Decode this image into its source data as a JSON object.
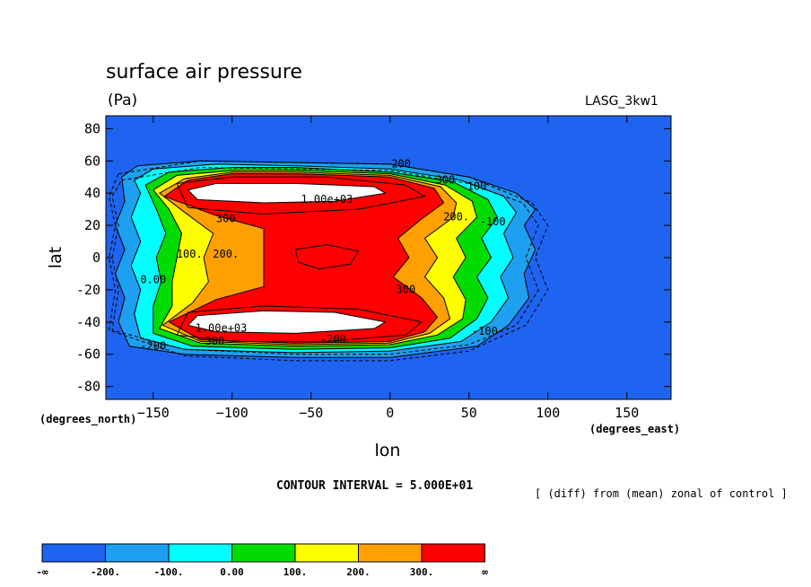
{
  "header": {
    "title": "surface air pressure",
    "units": "(Pa)",
    "model": "LASG_3kw1"
  },
  "footer": {
    "y_unit": "(degrees_north)",
    "x_unit": "(degrees_east)",
    "interval": "CONTOUR INTERVAL = 5.000E+01",
    "note": "[ (diff) from (mean) zonal of control ]"
  },
  "chart_data": {
    "type": "heatmap",
    "title": "surface air pressure",
    "units": "(Pa)",
    "xlabel": "lon",
    "ylabel": "lat",
    "xlim": [
      -180,
      178
    ],
    "ylim": [
      -88,
      88
    ],
    "xticks": [
      -150,
      -100,
      -50,
      0,
      50,
      100,
      150
    ],
    "yticks": [
      80,
      60,
      40,
      20,
      0,
      -20,
      -40,
      -60,
      -80
    ],
    "contour_interval": 50,
    "colorbar": {
      "boundaries": [
        "-∞",
        "-200.",
        "-100.",
        "0.00",
        "100.",
        "200.",
        "300.",
        "∞"
      ],
      "colors": [
        "#1e64f0",
        "#1ea0f0",
        "#00ffff",
        "#00dc00",
        "#ffff00",
        "#ffa000",
        "#ff0000"
      ]
    },
    "contour_labels": [
      {
        "text": "-200",
        "lon": 5,
        "lat": 56
      },
      {
        "text": "300",
        "lon": 35,
        "lat": 46
      },
      {
        "text": "100",
        "lon": 55,
        "lat": 42
      },
      {
        "text": "1.00e+03",
        "lon": -40,
        "lat": 34
      },
      {
        "text": "300",
        "lon": -104,
        "lat": 22
      },
      {
        "text": "200.",
        "lon": 42,
        "lat": 23
      },
      {
        "text": "-100",
        "lon": 65,
        "lat": 20
      },
      {
        "text": "100.",
        "lon": -127,
        "lat": 0
      },
      {
        "text": "200.",
        "lon": -104,
        "lat": 0
      },
      {
        "text": "0.00",
        "lon": -150,
        "lat": -16
      },
      {
        "text": "300",
        "lon": 10,
        "lat": -22
      },
      {
        "text": "1.00e+03",
        "lon": -107,
        "lat": -46
      },
      {
        "text": "300",
        "lon": -111,
        "lat": -54
      },
      {
        "text": "-200",
        "lon": -150,
        "lat": -57
      },
      {
        "text": "-200",
        "lon": -36,
        "lat": -53
      },
      {
        "text": "-100",
        "lon": 60,
        "lat": -48
      }
    ]
  }
}
